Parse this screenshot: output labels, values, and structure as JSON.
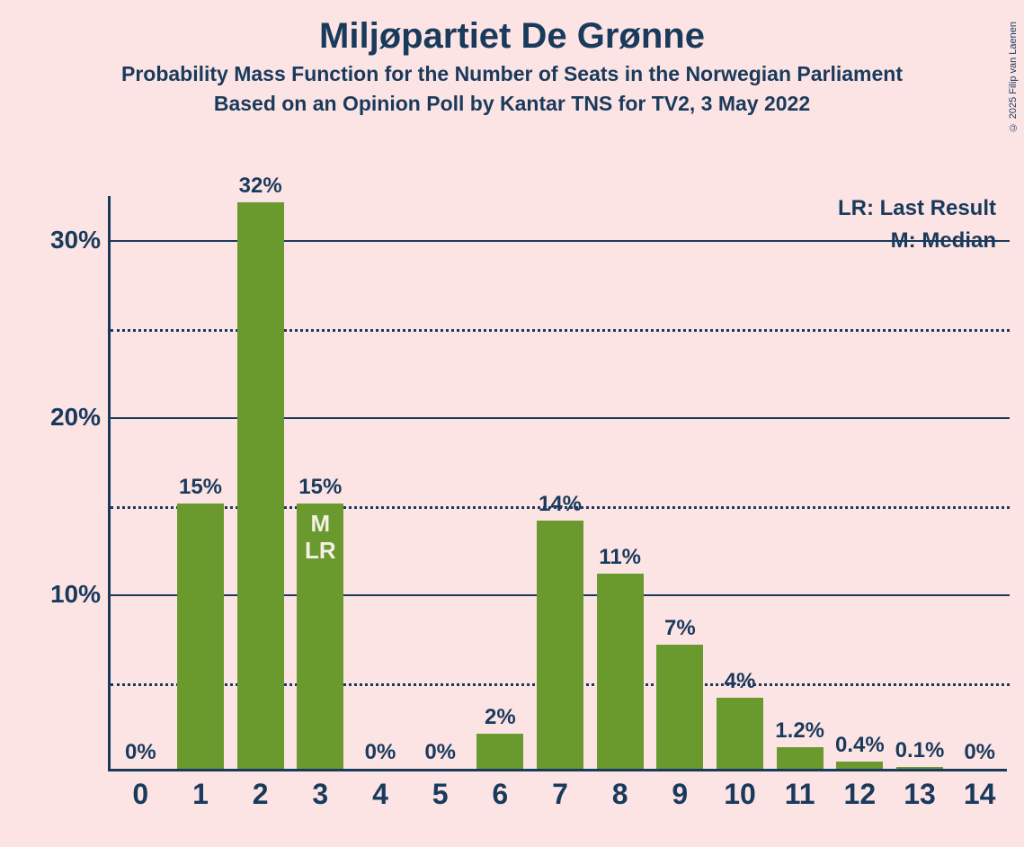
{
  "title": "Miljøpartiet De Grønne",
  "subtitle1": "Probability Mass Function for the Number of Seats in the Norwegian Parliament",
  "subtitle2": "Based on an Opinion Poll by Kantar TNS for TV2, 3 May 2022",
  "copyright": "© 2025 Filip van Laenen",
  "legend": {
    "lr": "LR: Last Result",
    "m": "M: Median"
  },
  "chart": {
    "type": "bar",
    "background_color": "#fce4e4",
    "axis_color": "#1a3a5c",
    "text_color": "#1a3a5c",
    "bar_color": "#6a9a2d",
    "annot_text_color": "#f5f0e6",
    "grid_major_color": "#1a3a5c",
    "grid_minor_color": "#1a3a5c",
    "ylim": [
      0,
      32.5
    ],
    "yticks_major": [
      10,
      20,
      30
    ],
    "yticks_minor": [
      5,
      15,
      25
    ],
    "ytick_labels": {
      "10": "10%",
      "20": "20%",
      "30": "30%"
    },
    "title_fontsize": 40,
    "subtitle_fontsize": 23,
    "tick_fontsize": 28,
    "xtick_fontsize": 32,
    "value_fontsize": 24,
    "legend_fontsize": 24,
    "bar_width": 0.78,
    "categories": [
      "0",
      "1",
      "2",
      "3",
      "4",
      "5",
      "6",
      "7",
      "8",
      "9",
      "10",
      "11",
      "12",
      "13",
      "14"
    ],
    "values": [
      0,
      15,
      32,
      15,
      0,
      0,
      2,
      14,
      11,
      7,
      4,
      1.2,
      0.4,
      0.1,
      0
    ],
    "value_labels": [
      "0%",
      "15%",
      "32%",
      "15%",
      "0%",
      "0%",
      "2%",
      "14%",
      "11%",
      "7%",
      "4%",
      "1.2%",
      "0.4%",
      "0.1%",
      "0%"
    ],
    "annotations": {
      "3": "M\nLR"
    }
  }
}
